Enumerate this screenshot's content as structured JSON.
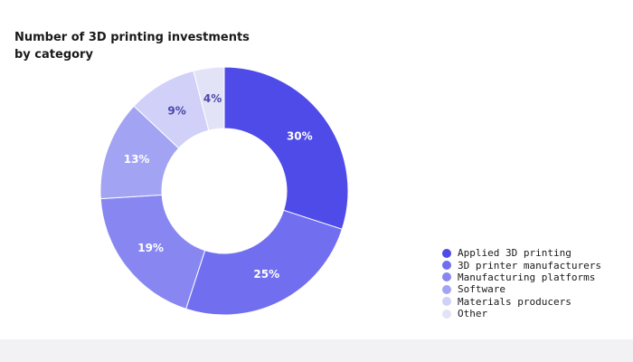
{
  "chart_data": {
    "type": "pie",
    "variant": "donut",
    "title": "Number of 3D printing investments by category",
    "legend_position": "bottom-right",
    "slices": [
      {
        "name": "Applied 3D printing",
        "value": 30,
        "label": "30%",
        "color": "#4f4be8",
        "label_color": "#ffffff"
      },
      {
        "name": "3D printer manufacturers",
        "value": 25,
        "label": "25%",
        "color": "#716ff0",
        "label_color": "#ffffff"
      },
      {
        "name": "Manufacturing platforms",
        "value": 19,
        "label": "19%",
        "color": "#8887f2",
        "label_color": "#ffffff"
      },
      {
        "name": "Software",
        "value": 13,
        "label": "13%",
        "color": "#a3a3f4",
        "label_color": "#ffffff"
      },
      {
        "name": "Materials producers",
        "value": 9,
        "label": "9%",
        "color": "#d0d0f8",
        "label_color": "#4a48a8"
      },
      {
        "name": "Other",
        "value": 4,
        "label": "4%",
        "color": "#e3e3f8",
        "label_color": "#4a48a8"
      }
    ]
  }
}
